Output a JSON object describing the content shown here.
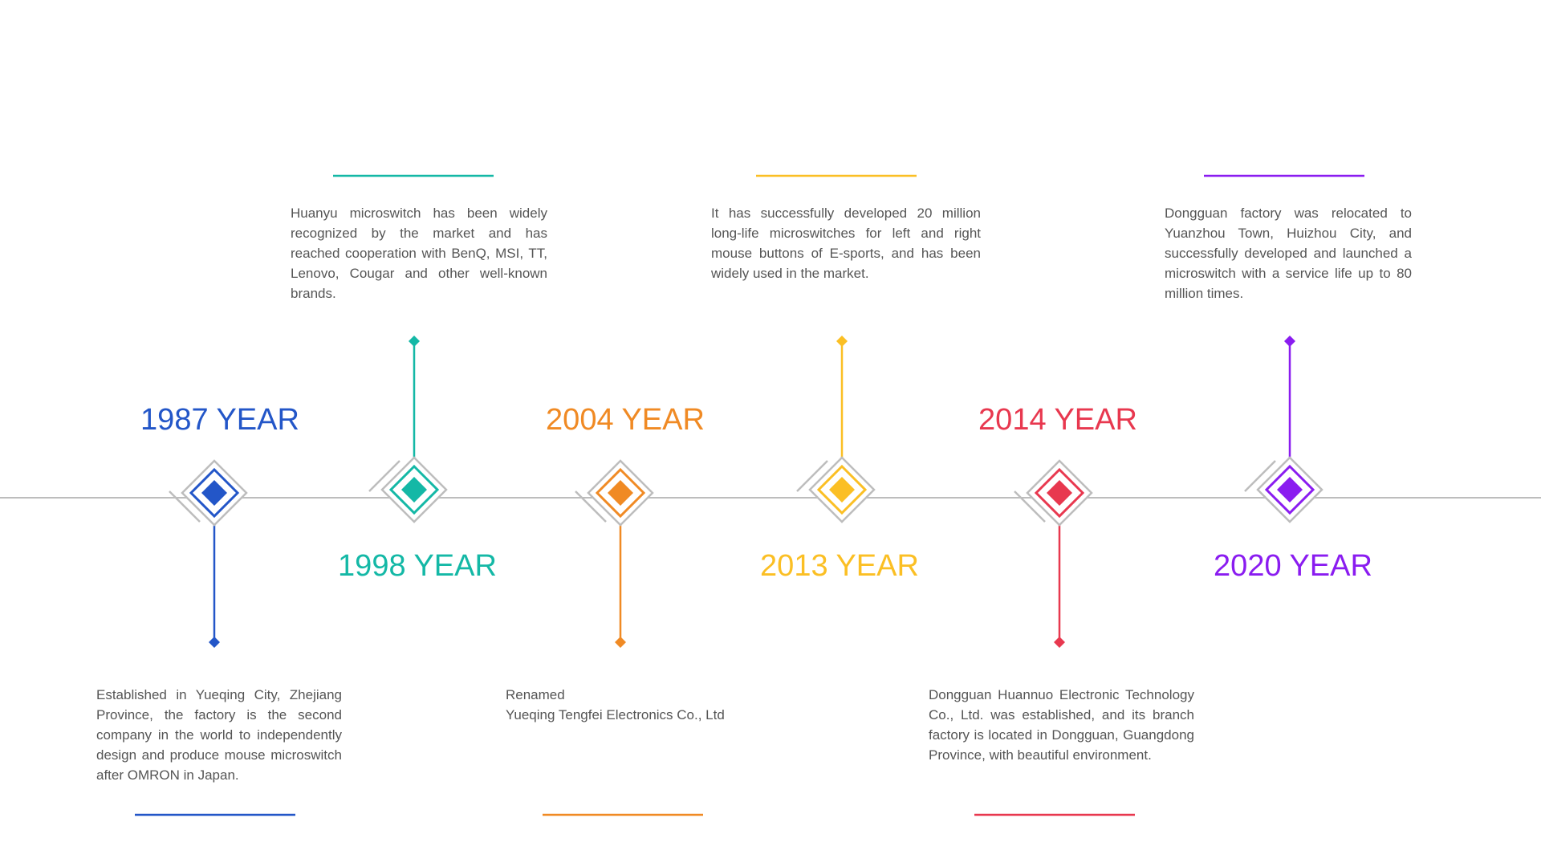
{
  "colors": {
    "axis": "#bdbdbd",
    "frame": "#bdbdbd",
    "text": "#555555"
  },
  "events": [
    {
      "id": "1987",
      "year_label": "1987 YEAR",
      "color": "#2356c8",
      "side": "below",
      "description": "Established in Yueqing City, Zhejiang Province, the factory is the second company in the world to independently design and produce mouse microswitch after OMRON in Japan."
    },
    {
      "id": "1998",
      "year_label": "1998 YEAR",
      "color": "#14b8a6",
      "side": "above",
      "description": "Huanyu microswitch has been widely recognized by the market and has reached cooperation with BenQ, MSI, TT, Lenovo, Cougar and other well-known brands."
    },
    {
      "id": "2004",
      "year_label": "2004 YEAR",
      "color": "#f08a24",
      "side": "below",
      "description_line1": "Renamed",
      "description_line2": "Yueqing Tengfei Electronics Co., Ltd"
    },
    {
      "id": "2013",
      "year_label": "2013 YEAR",
      "color": "#fbbf24",
      "side": "above",
      "description": "It has successfully developed 20 million long-life microswitches for left and right mouse buttons of E-sports, and has been widely used in the market."
    },
    {
      "id": "2014",
      "year_label": "2014 YEAR",
      "color": "#e8384f",
      "side": "below",
      "description": "Dongguan Huannuo Electronic Technology Co., Ltd. was established, and its branch factory is located in Dongguan, Guangdong Province, with beautiful environment."
    },
    {
      "id": "2020",
      "year_label": "2020 YEAR",
      "color": "#8a1cf0",
      "side": "above",
      "description": "Dongguan factory was relocated to Yuanzhou Town, Huizhou City, and successfully developed and launched a microswitch with a service life up to 80 million times."
    }
  ]
}
